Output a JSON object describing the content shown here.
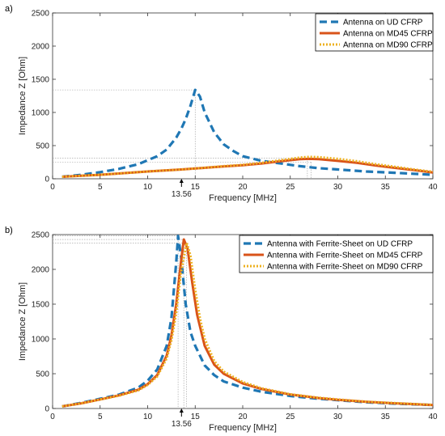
{
  "chart_data": [
    {
      "panel_label": "a)",
      "type": "line",
      "xlabel": "Frequency [MHz]",
      "ylabel": "Impedance Z [Ohm]",
      "xlim": [
        0,
        40
      ],
      "ylim": [
        0,
        2500
      ],
      "xticks": [
        0,
        5,
        10,
        15,
        20,
        25,
        30,
        35,
        40
      ],
      "yticks": [
        0,
        500,
        1000,
        1500,
        2000,
        2500
      ],
      "grid": false,
      "legend_position": "top-right",
      "marker_label": "13.56",
      "marker_x": 13.56,
      "reference_lines": [
        {
          "x": 15,
          "y": 1340
        },
        {
          "x": 26.8,
          "y": 310
        },
        {
          "x": 27.2,
          "y": 250
        }
      ],
      "colors": [
        "#1f77b4",
        "#d95319",
        "#edb120"
      ],
      "series": [
        {
          "name": "Antenna on UD CFRP",
          "style": "dashed",
          "x": [
            1,
            3,
            5,
            7,
            9,
            11,
            12,
            13,
            13.56,
            14,
            14.5,
            15,
            15.5,
            16,
            17,
            18,
            19,
            20,
            22,
            24,
            26,
            28,
            30,
            33,
            36,
            40
          ],
          "y": [
            30,
            60,
            100,
            150,
            220,
            340,
            440,
            620,
            760,
            900,
            1100,
            1340,
            1240,
            1000,
            700,
            520,
            420,
            340,
            270,
            230,
            190,
            160,
            140,
            110,
            90,
            60
          ]
        },
        {
          "name": "Antenna on MD45 CFRP",
          "style": "solid",
          "x": [
            1,
            3,
            5,
            8,
            10,
            13.56,
            15,
            18,
            20,
            22,
            24,
            26,
            27,
            28,
            30,
            32,
            34,
            36,
            38,
            40
          ],
          "y": [
            30,
            45,
            60,
            90,
            110,
            140,
            155,
            185,
            205,
            230,
            265,
            295,
            300,
            295,
            270,
            240,
            200,
            165,
            130,
            95
          ]
        },
        {
          "name": "Antenna on MD90 CFRP",
          "style": "dotted",
          "x": [
            1,
            3,
            5,
            8,
            10,
            13.56,
            15,
            18,
            20,
            22,
            24,
            26,
            27,
            28,
            30,
            32,
            34,
            36,
            38,
            40
          ],
          "y": [
            30,
            45,
            60,
            90,
            110,
            140,
            155,
            190,
            210,
            240,
            280,
            320,
            330,
            325,
            300,
            265,
            220,
            180,
            140,
            105
          ]
        }
      ]
    },
    {
      "panel_label": "b)",
      "type": "line",
      "xlabel": "Frequency [MHz]",
      "ylabel": "Impedance Z [Ohm]",
      "xlim": [
        0,
        40
      ],
      "ylim": [
        0,
        2500
      ],
      "xticks": [
        0,
        5,
        10,
        15,
        20,
        25,
        30,
        35,
        40
      ],
      "yticks": [
        0,
        500,
        1000,
        1500,
        2000,
        2500
      ],
      "grid": false,
      "legend_position": "top-right",
      "marker_label": "13.56",
      "marker_x": 13.56,
      "reference_lines": [
        {
          "x": 13.2,
          "y": 2480
        },
        {
          "x": 13.8,
          "y": 2430
        },
        {
          "x": 14.1,
          "y": 2380
        }
      ],
      "colors": [
        "#1f77b4",
        "#d95319",
        "#edb120"
      ],
      "series": [
        {
          "name": "Antenna with Ferrite-Sheet on UD CFRP",
          "style": "dashed",
          "x": [
            1,
            3,
            5,
            7,
            9,
            10,
            11,
            12,
            12.5,
            13,
            13.2,
            13.5,
            14,
            14.5,
            15,
            16,
            17,
            18,
            20,
            22,
            25,
            28,
            30,
            33,
            36,
            40
          ],
          "y": [
            30,
            80,
            140,
            200,
            300,
            400,
            560,
            900,
            1300,
            2100,
            2480,
            2200,
            1500,
            1100,
            900,
            620,
            480,
            390,
            300,
            240,
            180,
            140,
            120,
            90,
            70,
            50
          ]
        },
        {
          "name": "Antenna with Ferrite-Sheet on MD45 CFRP",
          "style": "solid",
          "x": [
            1,
            3,
            5,
            7,
            9,
            10,
            11,
            12,
            12.5,
            13,
            13.5,
            13.8,
            14.2,
            14.7,
            15.2,
            16,
            17,
            18,
            20,
            22,
            25,
            28,
            30,
            33,
            36,
            40
          ],
          "y": [
            30,
            75,
            130,
            190,
            270,
            350,
            480,
            760,
            1050,
            1500,
            2100,
            2430,
            2300,
            1800,
            1350,
            900,
            630,
            500,
            360,
            280,
            200,
            150,
            125,
            95,
            75,
            50
          ]
        },
        {
          "name": "Antenna with Ferrite-Sheet on MD90 CFRP",
          "style": "dotted",
          "x": [
            1,
            3,
            5,
            7,
            9,
            10,
            11,
            12,
            12.5,
            13,
            13.5,
            14.1,
            14.5,
            15,
            15.5,
            16,
            17,
            18,
            20,
            22,
            25,
            28,
            30,
            33,
            36,
            40
          ],
          "y": [
            30,
            75,
            130,
            185,
            260,
            340,
            460,
            720,
            980,
            1380,
            1950,
            2380,
            2200,
            1700,
            1300,
            1000,
            680,
            530,
            380,
            290,
            205,
            155,
            130,
            98,
            78,
            52
          ]
        }
      ]
    }
  ]
}
